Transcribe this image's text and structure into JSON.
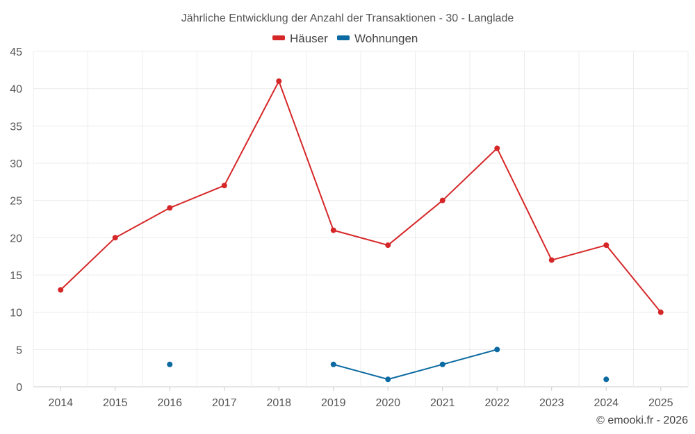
{
  "chart_data": {
    "type": "line",
    "title": "Jährliche Entwicklung der Anzahl der Transaktionen - 30 - Langlade",
    "categories": [
      "2014",
      "2015",
      "2016",
      "2017",
      "2018",
      "2019",
      "2020",
      "2021",
      "2022",
      "2023",
      "2024",
      "2025"
    ],
    "series": [
      {
        "name": "Häuser",
        "color": "#d62728",
        "values": [
          13,
          20,
          24,
          27,
          41,
          21,
          19,
          25,
          32,
          17,
          19,
          10
        ]
      },
      {
        "name": "Wohnungen",
        "color": "#0a6aa1",
        "values": [
          null,
          null,
          3,
          null,
          null,
          3,
          1,
          3,
          5,
          null,
          1,
          null
        ]
      }
    ],
    "ylim": [
      0,
      45
    ],
    "yticks": [
      0,
      5,
      10,
      15,
      20,
      25,
      30,
      35,
      40,
      45
    ],
    "xlabel": "",
    "ylabel": "",
    "grid": true,
    "legend_position": "top-center"
  },
  "credit": "© emooki.fr - 2026"
}
